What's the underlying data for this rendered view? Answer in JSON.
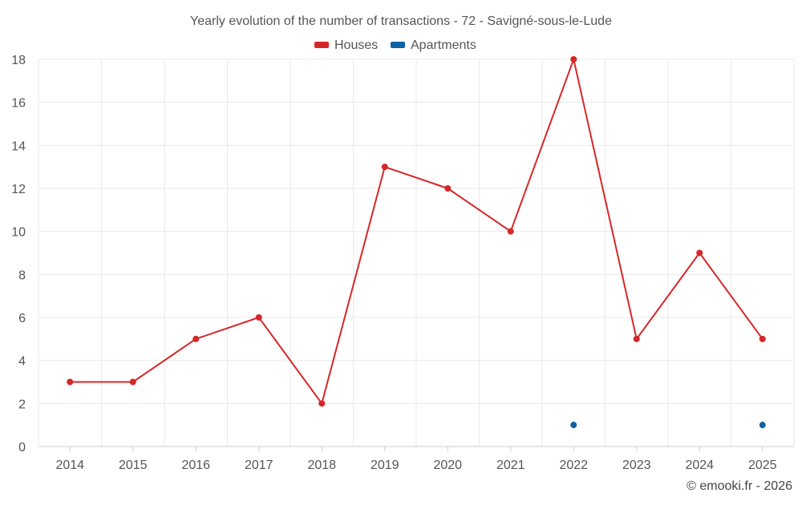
{
  "chart_data": {
    "type": "line",
    "title": "Yearly evolution of the number of transactions - 72 - Savigné-sous-le-Lude",
    "categories": [
      "2014",
      "2015",
      "2016",
      "2017",
      "2018",
      "2019",
      "2020",
      "2021",
      "2022",
      "2023",
      "2024",
      "2025"
    ],
    "series": [
      {
        "name": "Houses",
        "color": "#d62728",
        "values": [
          3,
          3,
          5,
          6,
          2,
          13,
          12,
          10,
          18,
          5,
          9,
          5
        ]
      },
      {
        "name": "Apartments",
        "color": "#0b62a4",
        "values": [
          null,
          null,
          null,
          null,
          null,
          null,
          null,
          null,
          1,
          null,
          null,
          1
        ]
      }
    ],
    "ylim": [
      0,
      18
    ],
    "yticks": [
      "0",
      "2",
      "4",
      "6",
      "8",
      "10",
      "12",
      "14",
      "16",
      "18"
    ],
    "xlabel": "",
    "ylabel": "",
    "grid": true,
    "legend_position": "top-center"
  },
  "credit": "© emooki.fr - 2026"
}
